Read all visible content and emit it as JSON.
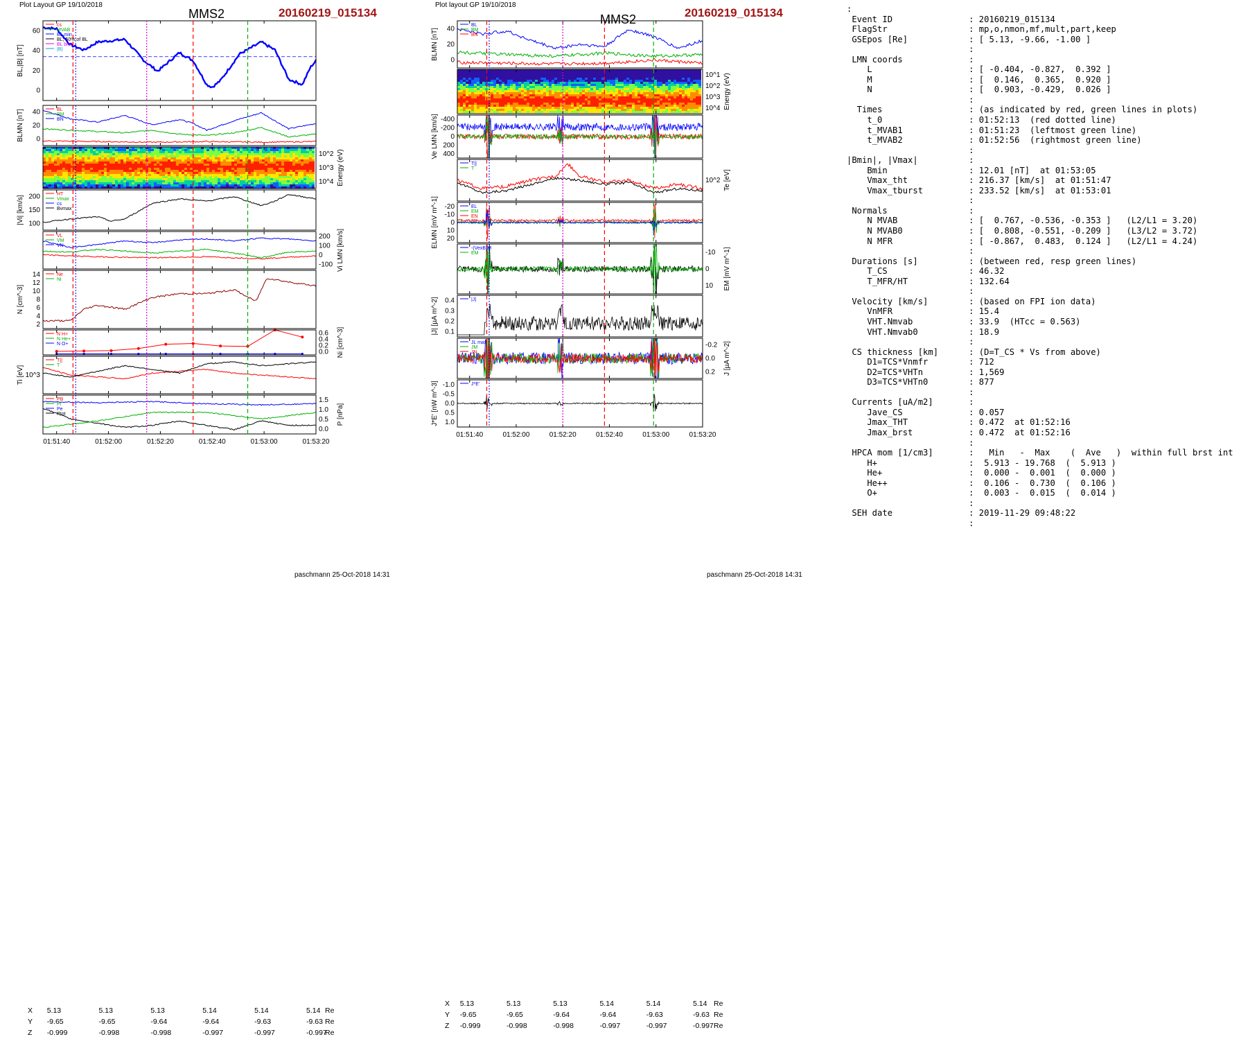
{
  "header": {
    "left_label": "Plot Layout GP 19/10/2018",
    "mid_label": "Plot layout GP 19/10/2018",
    "spacecraft": "MMS2",
    "event": "20160219_015134"
  },
  "footer": {
    "left": "paschmann 25-Oct-2018 14:31",
    "mid": "paschmann 25-Oct-2018 14:31"
  },
  "time_ticks": [
    "01:51:40",
    "01:52:00",
    "01:52:20",
    "01:52:40",
    "01:53:00",
    "01:53:20"
  ],
  "coords": {
    "labels": [
      "X",
      "Y",
      "Z"
    ],
    "unit": "Re",
    "X": [
      "5.13",
      "5.13",
      "5.13",
      "5.14",
      "5.14",
      "5.14"
    ],
    "Y": [
      "-9.65",
      "-9.65",
      "-9.64",
      "-9.64",
      "-9.63",
      "-9.63"
    ],
    "Z": [
      "-0.999",
      "-0.998",
      "-0.998",
      "-0.997",
      "-0.997",
      "-0.997"
    ]
  },
  "colors": {
    "red": "#ff0000",
    "green": "#00b000",
    "blue": "#0000ff",
    "magenta": "#e000e0",
    "black": "#000000",
    "cyan": "#00a0e0",
    "darkred": "#8b0000",
    "event_red": "#a31515"
  },
  "chart_data": [
    {
      "type": "line",
      "panel": "left",
      "ylabel": "BL,|B| [nT]",
      "ylim": [
        0,
        60
      ],
      "yticks": [
        "0",
        "20",
        "40",
        "60"
      ],
      "legend": [
        "cs",
        "MVAB",
        "Bt_min",
        "BL, 50% of BL",
        "BL brst",
        "|B|"
      ],
      "series": [
        {
          "name": "BL",
          "x": [
            0,
            5,
            10,
            15,
            20,
            30,
            37,
            42,
            50,
            55,
            60,
            62,
            65,
            72,
            80,
            85,
            90,
            95,
            98,
            100,
            103
          ],
          "values": [
            55,
            54,
            42,
            38,
            44,
            46,
            30,
            22,
            36,
            30,
            12,
            10,
            15,
            35,
            44,
            38,
            16,
            12,
            25,
            30,
            30
          ]
        }
      ]
    },
    {
      "type": "line",
      "panel": "left",
      "ylabel": "BLMN [nT]",
      "yticks": [
        "0",
        "20",
        "40"
      ],
      "legend": [
        "BL",
        "BM",
        "BN"
      ],
      "series": [
        {
          "name": "BL",
          "x": [
            0,
            10,
            20,
            30,
            40,
            50,
            55,
            60,
            70,
            80,
            90,
            100
          ],
          "values": [
            48,
            35,
            30,
            40,
            26,
            34,
            28,
            18,
            32,
            44,
            20,
            28
          ]
        },
        {
          "name": "BM",
          "x": [
            0,
            10,
            20,
            30,
            40,
            50,
            60,
            70,
            80,
            90,
            100
          ],
          "values": [
            20,
            18,
            16,
            14,
            18,
            12,
            10,
            14,
            22,
            8,
            12
          ]
        },
        {
          "name": "BN",
          "x": [
            0,
            20,
            40,
            60,
            80,
            100
          ],
          "values": [
            2,
            1,
            0,
            1,
            0,
            1
          ]
        }
      ]
    },
    {
      "type": "heatmap",
      "panel": "left",
      "ylabel": "Energy (eV)",
      "yticks": [
        "10^4",
        "10^3",
        "10^2"
      ]
    },
    {
      "type": "line",
      "panel": "left",
      "ylabel": "|Vi| [km/s]",
      "yticks": [
        "100",
        "150",
        "200"
      ],
      "legend": [
        "HT",
        "Vmax",
        "cs",
        "Bvmax"
      ],
      "series": [
        {
          "name": "|Vi|",
          "x": [
            0,
            10,
            20,
            25,
            30,
            40,
            50,
            60,
            70,
            80,
            85,
            90,
            100
          ],
          "values": [
            95,
            110,
            120,
            100,
            110,
            180,
            200,
            190,
            210,
            170,
            190,
            220,
            200
          ]
        }
      ]
    },
    {
      "type": "line",
      "panel": "left",
      "ylabel": "Vi LMN [km/s]",
      "yticks": [
        "-100",
        "0",
        "100",
        "200"
      ],
      "legend": [
        "VL",
        "VM",
        "VN"
      ],
      "series": [
        {
          "name": "VL",
          "x": [
            0,
            10,
            20,
            30,
            40,
            50,
            60,
            70,
            80,
            90,
            100
          ],
          "values": [
            150,
            80,
            110,
            150,
            130,
            160,
            170,
            150,
            180,
            170,
            150
          ]
        },
        {
          "name": "VM",
          "x": [
            0,
            10,
            20,
            30,
            40,
            50,
            60,
            70,
            80,
            90,
            100
          ],
          "values": [
            40,
            30,
            60,
            40,
            20,
            40,
            60,
            20,
            -30,
            30,
            40
          ]
        },
        {
          "name": "VN",
          "x": [
            0,
            20,
            40,
            60,
            80,
            100
          ],
          "values": [
            0,
            -20,
            -30,
            -20,
            -40,
            -10
          ]
        }
      ]
    },
    {
      "type": "line",
      "panel": "left",
      "ylabel": "N [cm^-3]",
      "yticks": [
        "2",
        "4",
        "6",
        "8",
        "10",
        "12",
        "14"
      ],
      "legend": [
        "Ne",
        "Ni"
      ],
      "series": [
        {
          "name": "Ne",
          "x": [
            0,
            10,
            15,
            20,
            30,
            40,
            50,
            60,
            70,
            78,
            82,
            90,
            100
          ],
          "values": [
            2,
            2,
            5,
            6,
            5,
            8,
            9,
            9,
            10,
            7,
            13,
            12,
            11
          ]
        }
      ]
    },
    {
      "type": "line",
      "panel": "left",
      "ylabel": "Ni [cm^-3]",
      "ylim": [
        0,
        0.7
      ],
      "yticks": [
        "0.0",
        "0.2",
        "0.4",
        "0.6"
      ],
      "legend": [
        "N H+",
        "N He+",
        "N O+"
      ],
      "series": [
        {
          "name": "He+",
          "x": [
            5,
            15,
            25,
            35,
            45,
            55,
            65,
            75,
            85,
            95
          ],
          "values": [
            0.1,
            0.11,
            0.12,
            0.18,
            0.3,
            0.32,
            0.25,
            0.24,
            0.7,
            0.5
          ]
        },
        {
          "name": "O+",
          "x": [
            5,
            15,
            25,
            35,
            45,
            55,
            65,
            75,
            85,
            95
          ],
          "values": [
            0.01,
            0.01,
            0.01,
            0.01,
            0.01,
            0.01,
            0.01,
            0.01,
            0.01,
            0.01
          ]
        }
      ]
    },
    {
      "type": "line",
      "panel": "left",
      "ylabel": "Ti [eV]",
      "yticks": [
        "10^3"
      ],
      "legend": [
        "T||",
        "T"
      ],
      "series": [
        {
          "name": "T||",
          "x": [
            0,
            10,
            20,
            30,
            40,
            50,
            60,
            70,
            80,
            90,
            100
          ],
          "values": [
            0.7,
            0.5,
            0.45,
            0.4,
            0.55,
            0.6,
            0.65,
            0.55,
            0.5,
            0.45,
            0.4
          ]
        },
        {
          "name": "T",
          "x": [
            0,
            10,
            20,
            30,
            40,
            50,
            60,
            70,
            80,
            90,
            100
          ],
          "values": [
            0.55,
            0.45,
            0.6,
            0.75,
            0.65,
            0.55,
            0.8,
            0.85,
            0.75,
            0.8,
            0.85
          ]
        }
      ]
    },
    {
      "type": "line",
      "panel": "left",
      "ylabel": "P [nPa]",
      "yticks": [
        "0.0",
        "0.5",
        "1.0",
        "1.5"
      ],
      "legend": [
        "PB",
        "Pi",
        "Pe",
        "Ptot"
      ],
      "series": [
        {
          "name": "PB",
          "x": [
            0,
            10,
            20,
            30,
            40,
            50,
            60,
            70,
            80,
            90,
            100
          ],
          "values": [
            1.2,
            0.7,
            0.5,
            0.3,
            0.4,
            0.6,
            0.4,
            0.2,
            0.6,
            0.4,
            0.4
          ]
        }
      ]
    },
    {
      "type": "line",
      "panel": "mid",
      "ylabel": "BLMN [nT]",
      "yticks": [
        "0",
        "20",
        "40"
      ],
      "legend": [
        "BL",
        "BM",
        "BN"
      ],
      "series": [
        {
          "name": "BL",
          "x": [
            0,
            10,
            20,
            30,
            40,
            50,
            60,
            70,
            80,
            90,
            100
          ],
          "values": [
            45,
            38,
            42,
            30,
            20,
            25,
            22,
            44,
            35,
            20,
            30
          ]
        },
        {
          "name": "BM",
          "x": [
            0,
            20,
            40,
            60,
            80,
            100
          ],
          "values": [
            15,
            12,
            10,
            14,
            10,
            12
          ]
        },
        {
          "name": "BN",
          "x": [
            0,
            20,
            40,
            60,
            80,
            100
          ],
          "values": [
            2,
            1,
            0,
            1,
            5,
            1
          ]
        }
      ]
    },
    {
      "type": "heatmap",
      "panel": "mid",
      "ylabel": "Energy (eV)",
      "yticks": [
        "10^4",
        "10^3",
        "10^2",
        "10^1"
      ]
    },
    {
      "type": "line",
      "panel": "mid",
      "ylabel": "Ve LMN [km/s]",
      "yticks": [
        "400",
        "200",
        "0",
        "-200",
        "-400"
      ]
    },
    {
      "type": "line",
      "panel": "mid",
      "ylabel": "Te [eV]",
      "yticks": [
        "10^2"
      ],
      "legend": [
        "T||",
        "T"
      ]
    },
    {
      "type": "line",
      "panel": "mid",
      "ylabel": "ELMN [mV m^-1]",
      "yticks": [
        "20",
        "10",
        "0",
        "-10",
        "-20"
      ],
      "legend": [
        "EL",
        "EM",
        "EN"
      ]
    },
    {
      "type": "line",
      "panel": "mid",
      "ylabel": "EM [mV m^-1]",
      "yticks": [
        "10",
        "0",
        "-10"
      ],
      "legend": [
        "-(VexB)M",
        "EM"
      ]
    },
    {
      "type": "line",
      "panel": "mid",
      "ylabel": "|J| [µA m^-2]",
      "yticks": [
        "0.1",
        "0.2",
        "0.3",
        "0.4"
      ],
      "legend": [
        "|J|"
      ]
    },
    {
      "type": "line",
      "panel": "mid",
      "ylabel": "J [µA m^-2]",
      "yticks": [
        "0.2",
        "0.0",
        "-0.2"
      ],
      "legend": [
        "JL max",
        "JM",
        "JN"
      ]
    },
    {
      "type": "line",
      "panel": "mid",
      "ylabel": "J*E' [nW m^-3]",
      "yticks": [
        "1.0",
        "0.5",
        "0.0",
        "-0.5",
        "-1.0"
      ],
      "legend": [
        "J*E'"
      ]
    }
  ],
  "info_lines": [
    ":",
    " Event ID               : 20160219_015134",
    " FlagStr                : mp,o,nmon,mf,mult,part,keep",
    " GSEpos [Re]            : [ 5.13, -9.66, -1.00 ]",
    "                        :",
    " LMN coords             :",
    "    L                   : [ -0.404, -0.827,  0.392 ]",
    "    M                   : [  0.146,  0.365,  0.920 ]",
    "    N                   : [  0.903, -0.429,  0.026 ]",
    "                        :",
    "  Times                 : (as indicated by red, green lines in plots)",
    "    t_0                 : 01:52:13  (red dotted line)",
    "    t_MVAB1             : 01:51:23  (leftmost green line)",
    "    t_MVAB2             : 01:52:56  (rightmost green line)",
    "                        :",
    "|Bmin|, |Vmax|          :",
    "    Bmin                : 12.01 [nT]  at 01:53:05",
    "    Vmax_tht            : 216.37 [km/s]  at 01:51:47",
    "    Vmax_tburst         : 233.52 [km/s]  at 01:53:01",
    "                        :",
    " Normals                :",
    "    N MVAB              : [  0.767, -0.536, -0.353 ]   (L2/L1 = 3.20)",
    "    N MVAB0             : [  0.808, -0.551, -0.209 ]   (L3/L2 = 3.72)",
    "    N MFR               : [ -0.867,  0.483,  0.124 ]   (L2/L1 = 4.24)",
    "                        :",
    " Durations [s]          : (between red, resp green lines)",
    "    T_CS                : 46.32",
    "    T_MFR/HT            : 132.64",
    "                        :",
    " Velocity [km/s]        : (based on FPI ion data)",
    "    VnMFR               : 15.4",
    "    VHT.Nmvab           : 33.9  (HTcc = 0.563)",
    "    VHT.Nmvab0          : 18.9",
    "                        :",
    " CS thickness [km]      : (D=T_CS * Vs from above)",
    "    D1=TCS*Vnmfr        : 712",
    "    D2=TCS*VHTn         : 1,569",
    "    D3=TCS*VHTn0        : 877",
    "                        :",
    " Currents [uA/m2]       :",
    "    Jave_CS             : 0.057",
    "    Jmax_THT            : 0.472  at 01:52:16",
    "    Jmax_brst           : 0.472  at 01:52:16",
    "                        :",
    " HPCA mom [1/cm3]       :   Min   -  Max    (  Ave   )  within full brst int",
    "    H+                  :  5.913 - 19.768  (  5.913 )",
    "    He+                 :  0.000 -  0.001  (  0.000 )",
    "    He++                :  0.106 -  0.730  (  0.106 )",
    "    O+                  :  0.003 -  0.015  (  0.014 )",
    "                        :",
    " SEH date               : 2019-11-29 09:48:22",
    "                        :"
  ]
}
